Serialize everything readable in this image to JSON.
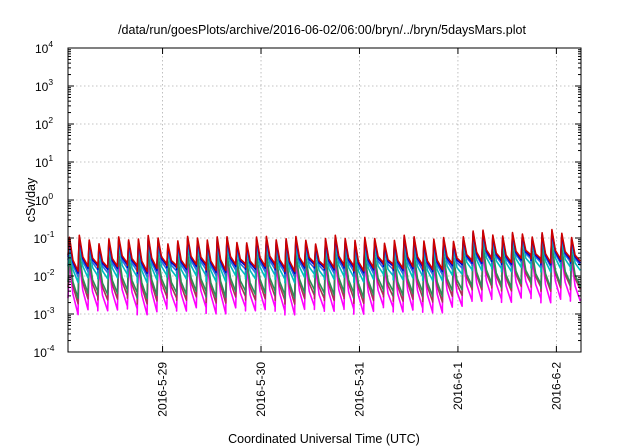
{
  "chart_data": {
    "type": "line",
    "title": "/data/run/goesPlots/archive/2016-06-02/06:00/bryn/../bryn/5daysMars.plot",
    "xlabel": "Coordinated Universal Time (UTC)",
    "ylabel": "cSv/day",
    "yscale": "log",
    "ylim": [
      0.0001,
      10000
    ],
    "xlim": [
      "2016-05-28T00:57",
      "2016-06-02T06:00"
    ],
    "grid": true,
    "legend": "none",
    "x_ticks": [
      {
        "label": "2016-5-29",
        "value": "2016-05-29"
      },
      {
        "label": "2016-5-30",
        "value": "2016-05-30"
      },
      {
        "label": "2016-5-31",
        "value": "2016-05-31"
      },
      {
        "label": "2016-6-1",
        "value": "2016-06-01"
      },
      {
        "label": "2016-6-2",
        "value": "2016-06-02"
      }
    ],
    "y_ticks": [
      {
        "base": "10",
        "exp": "4",
        "value": 10000
      },
      {
        "base": "10",
        "exp": "3",
        "value": 1000
      },
      {
        "base": "10",
        "exp": "2",
        "value": 100
      },
      {
        "base": "10",
        "exp": "1",
        "value": 10
      },
      {
        "base": "10",
        "exp": "0",
        "value": 1
      },
      {
        "base": "10",
        "exp": "-1",
        "value": 0.1
      },
      {
        "base": "10",
        "exp": "-2",
        "value": 0.01
      },
      {
        "base": "10",
        "exp": "-3",
        "value": 0.001
      },
      {
        "base": "10",
        "exp": "-4",
        "value": 0.0001
      }
    ],
    "pattern": {
      "description": "sawtooth, ~10 cycles per day",
      "cycle_hours": 2.4,
      "days_quiet": [
        "2016-05-28",
        "2016-05-29",
        "2016-05-30",
        "2016-05-31"
      ],
      "days_active": [
        "2016-06-01",
        "2016-06-02"
      ]
    },
    "series": [
      {
        "color": "#cc0000",
        "peak_quiet": 0.095,
        "trough_quiet": 0.018,
        "peak_active": 0.13,
        "trough_active": 0.028
      },
      {
        "color": "#0000cc",
        "peak_quiet": 0.085,
        "trough_quiet": 0.016,
        "peak_active": 0.12,
        "trough_active": 0.025
      },
      {
        "color": "#2f6fdd",
        "peak_quiet": 0.075,
        "trough_quiet": 0.013,
        "peak_active": 0.11,
        "trough_active": 0.022
      },
      {
        "color": "#00bcbc",
        "peak_quiet": 0.06,
        "trough_quiet": 0.009,
        "peak_active": 0.09,
        "trough_active": 0.016
      },
      {
        "color": "#2e8b57",
        "peak_quiet": 0.035,
        "trough_quiet": 0.0035,
        "peak_active": 0.055,
        "trough_active": 0.006
      },
      {
        "color": "#aa3355",
        "peak_quiet": 0.03,
        "trough_quiet": 0.0025,
        "peak_active": 0.045,
        "trough_active": 0.005
      },
      {
        "color": "#ff00ff",
        "peak_quiet": 0.022,
        "trough_quiet": 0.0013,
        "peak_active": 0.035,
        "trough_active": 0.0025
      }
    ]
  }
}
